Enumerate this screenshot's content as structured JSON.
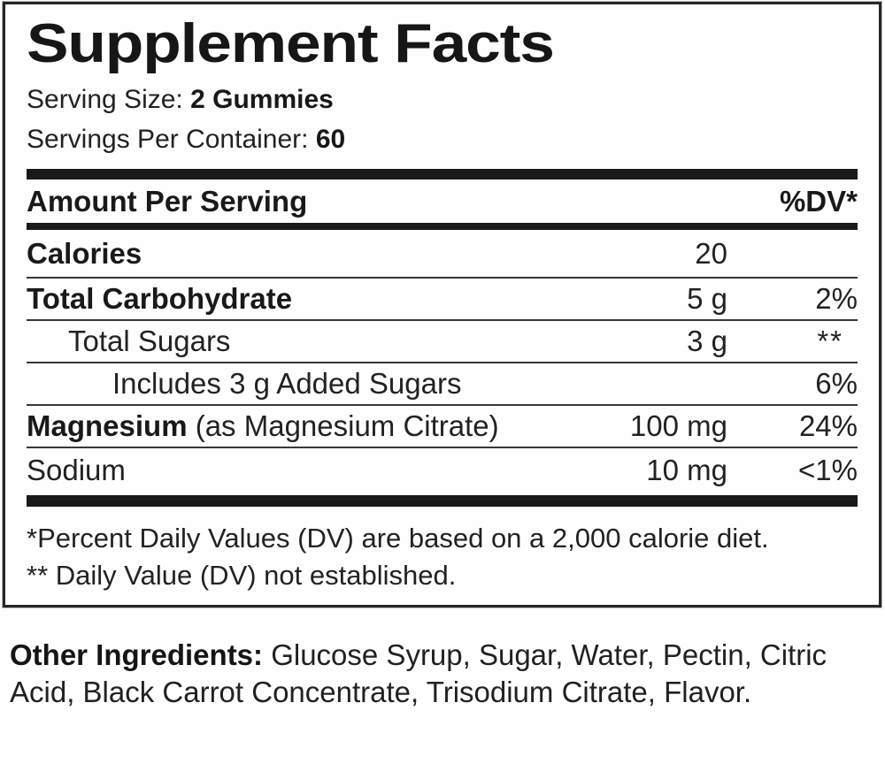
{
  "colors": {
    "background": "#ffffff",
    "text": "#1d1d1d",
    "bars": "#1a1a1a",
    "thin_separator": "#373737",
    "box_border": "#262626"
  },
  "panel": {
    "title": "Supplement Facts",
    "serving_size": {
      "label": "Serving Size: ",
      "value": "2 Gummies"
    },
    "servings_per_container": {
      "label": "Servings Per Container: ",
      "value": "60"
    },
    "header": {
      "left": "Amount Per Serving",
      "right": "%DV*"
    },
    "rows": [
      {
        "name": "Calories",
        "suffix": "",
        "amount": "20",
        "dv": ""
      },
      {
        "name": "Total Carbohydrate",
        "suffix": "",
        "amount": "5 g",
        "dv": "2%"
      },
      {
        "name": "Total Sugars",
        "suffix": "",
        "amount": "3 g",
        "dv": "**"
      },
      {
        "name": "Includes 3 g Added Sugars",
        "suffix": "",
        "amount": "",
        "dv": "6%"
      },
      {
        "name": "Magnesium",
        "suffix": " (as Magnesium Citrate)",
        "amount": "100 mg",
        "dv": "24%"
      },
      {
        "name": "Sodium",
        "suffix": "",
        "amount": "10 mg",
        "dv": "<1%"
      }
    ],
    "footnotes": [
      "*Percent Daily Values (DV) are based on a 2,000 calorie diet.",
      "** Daily Value (DV) not established."
    ]
  },
  "other_ingredients": {
    "label": "Other Ingredients:",
    "text": " Glucose Syrup, Sugar, Water, Pectin, Citric Acid, Black Carrot Concentrate, Trisodium Citrate, Flavor."
  }
}
